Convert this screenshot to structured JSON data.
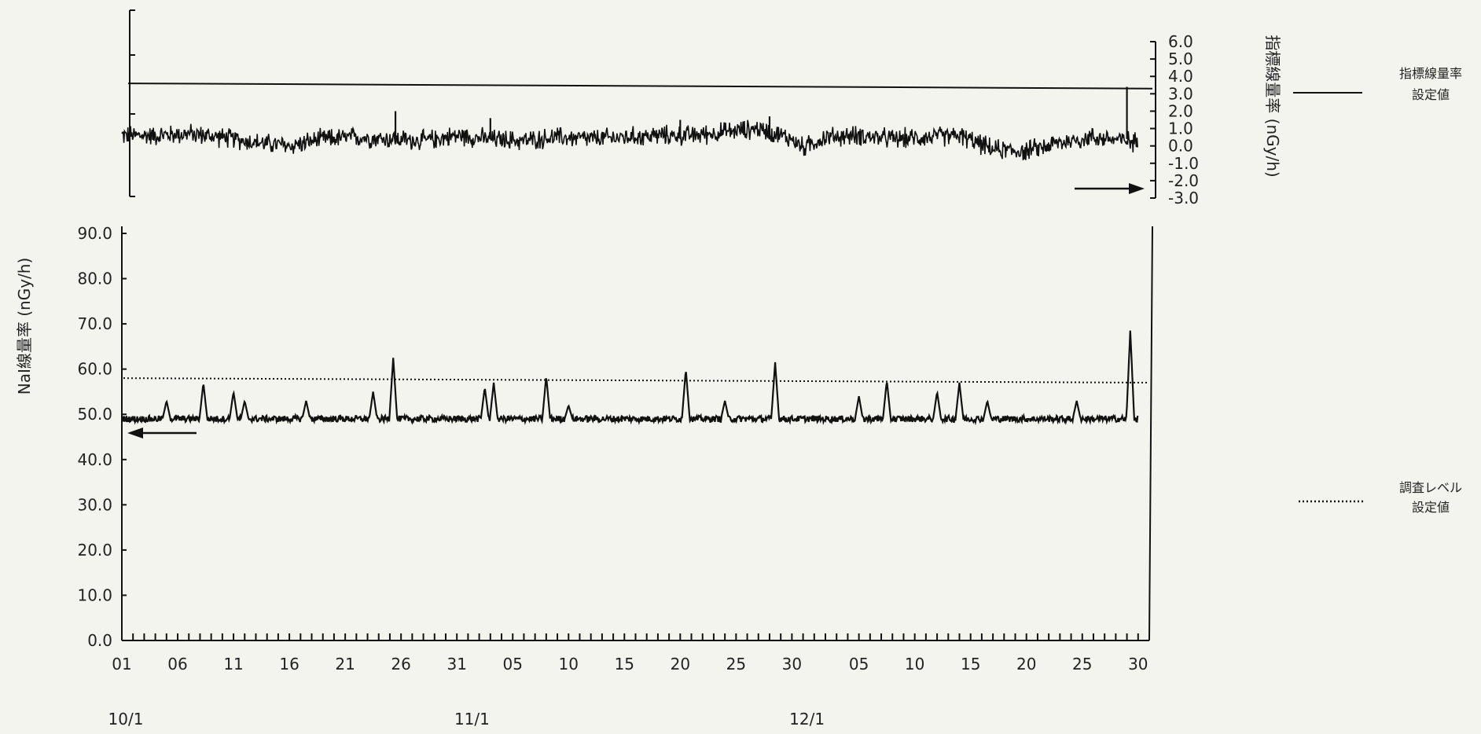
{
  "chart_data": [
    {
      "type": "line",
      "panel": "top",
      "ylabel": "指標線量率 (nGy/h)",
      "ylim": [
        -3.0,
        6.0
      ],
      "yticks": [
        "6.0",
        "5.0",
        "4.0",
        "3.0",
        "2.0",
        "1.0",
        "0.0",
        "-1.0",
        "-2.0",
        "-3.0"
      ],
      "ytick_values": [
        6,
        5,
        4,
        3,
        2,
        1,
        0,
        -1,
        -2,
        -3
      ],
      "setting_line": {
        "name": "指標線量率 設定値",
        "start": 3.6,
        "end": 3.3,
        "style": "solid"
      },
      "series": [
        {
          "x_days": [
            0,
            3,
            6,
            9,
            12,
            15,
            18,
            21,
            24,
            27,
            30,
            33,
            36,
            39,
            42,
            45,
            48,
            51,
            54,
            57,
            60,
            61,
            63,
            66,
            69,
            72,
            75,
            78,
            81,
            84,
            87,
            90,
            91
          ],
          "values": [
            0.6,
            0.6,
            0.7,
            0.5,
            0.2,
            0.0,
            0.4,
            0.5,
            0.4,
            0.3,
            0.6,
            0.4,
            0.3,
            0.5,
            0.4,
            0.5,
            0.6,
            0.6,
            0.8,
            1.0,
            0.4,
            -0.1,
            0.5,
            0.6,
            0.4,
            0.5,
            0.6,
            -0.2,
            -0.3,
            0.2,
            0.5,
            0.3,
            0.2
          ],
          "noise_amplitude": 0.5
        }
      ],
      "spikes": [
        {
          "day": 24.5,
          "value": 2.0
        },
        {
          "day": 33,
          "value": 1.6
        },
        {
          "day": 50,
          "value": 1.5
        },
        {
          "day": 58,
          "value": 1.7
        },
        {
          "day": 90,
          "value": 3.4
        }
      ]
    },
    {
      "type": "line",
      "panel": "bottom",
      "ylabel": "NaI線量率 (nGy/h)",
      "ylim": [
        0,
        90
      ],
      "yticks": [
        "90.0",
        "80.0",
        "70.0",
        "60.0",
        "50.0",
        "40.0",
        "30.0",
        "20.0",
        "10.0",
        "0.0"
      ],
      "ytick_values": [
        90,
        80,
        70,
        60,
        50,
        40,
        30,
        20,
        10,
        0
      ],
      "xticks": [
        "01",
        "06",
        "11",
        "16",
        "21",
        "26",
        "31",
        "05",
        "10",
        "15",
        "20",
        "25",
        "30",
        "05",
        "10",
        "15",
        "20",
        "25",
        "30"
      ],
      "xtick_days": [
        0,
        5,
        10,
        15,
        20,
        25,
        30,
        35,
        40,
        45,
        50,
        55,
        60,
        66,
        71,
        76,
        81,
        86,
        91
      ],
      "month_labels": [
        "10/1",
        "11/1",
        "12/1"
      ],
      "month_days": [
        0,
        31,
        61
      ],
      "setting_line": {
        "name": "調査レベル 設定値",
        "start": 58.0,
        "end": 57.0,
        "style": "dotted"
      },
      "baseline": 49.0,
      "spikes": [
        {
          "day": 4,
          "value": 53
        },
        {
          "day": 7.3,
          "value": 57
        },
        {
          "day": 10,
          "value": 55
        },
        {
          "day": 11,
          "value": 53
        },
        {
          "day": 16.5,
          "value": 53
        },
        {
          "day": 22.5,
          "value": 55
        },
        {
          "day": 24.3,
          "value": 62.5
        },
        {
          "day": 32.5,
          "value": 56
        },
        {
          "day": 33.3,
          "value": 57
        },
        {
          "day": 38,
          "value": 58.5
        },
        {
          "day": 40,
          "value": 52
        },
        {
          "day": 50.5,
          "value": 60
        },
        {
          "day": 54,
          "value": 53
        },
        {
          "day": 58.5,
          "value": 61.5
        },
        {
          "day": 66,
          "value": 54
        },
        {
          "day": 68.5,
          "value": 57.5
        },
        {
          "day": 73,
          "value": 55
        },
        {
          "day": 75,
          "value": 57
        },
        {
          "day": 77.5,
          "value": 53
        },
        {
          "day": 85.5,
          "value": 53
        },
        {
          "day": 90.3,
          "value": 68.5
        }
      ]
    }
  ]
}
